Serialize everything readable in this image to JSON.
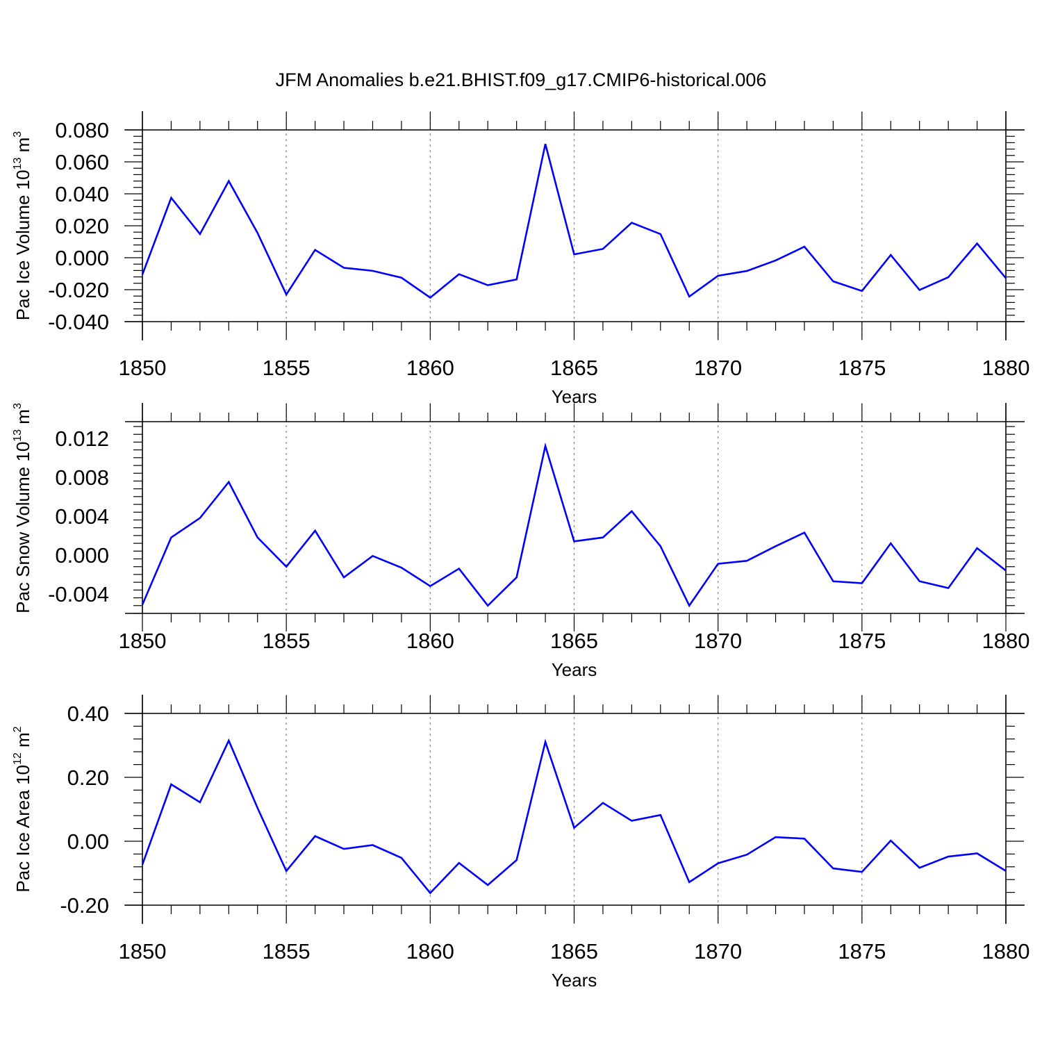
{
  "title": "JFM Anomalies b.e21.BHIST.f09_g17.CMIP6-historical.006",
  "colors": {
    "line": "#0000ff",
    "axis": "#000000",
    "grid": "#888888"
  },
  "chart_data": [
    {
      "type": "line",
      "ylabel_prefix": "Pac Ice Volume 10",
      "ylabel_exp": "13",
      "ylabel_unit": " m",
      "ylabel_unit_exp": "3",
      "xlabel": "Years",
      "xlim": [
        1850,
        1880
      ],
      "ylim": [
        -0.04,
        0.08
      ],
      "yticks": [
        -0.04,
        -0.02,
        0.0,
        0.02,
        0.04,
        0.06,
        0.08
      ],
      "ytick_labels": [
        "-0.040",
        "-0.020",
        "0.000",
        "0.020",
        "0.040",
        "0.060",
        "0.080"
      ],
      "xticks": [
        1850,
        1855,
        1860,
        1865,
        1870,
        1875,
        1880
      ],
      "xtick_labels": [
        "1850",
        "1855",
        "1860",
        "1865",
        "1870",
        "1875",
        "1880"
      ],
      "x": [
        1850,
        1851,
        1852,
        1853,
        1854,
        1855,
        1856,
        1857,
        1858,
        1859,
        1860,
        1861,
        1862,
        1863,
        1864,
        1865,
        1866,
        1867,
        1868,
        1869,
        1870,
        1871,
        1872,
        1873,
        1874,
        1875,
        1876,
        1877,
        1878,
        1879,
        1880
      ],
      "series": [
        {
          "name": "Pac Ice Volume",
          "values": [
            -0.0105,
            0.0375,
            0.0148,
            0.048,
            0.0155,
            -0.023,
            0.0049,
            -0.0063,
            -0.0082,
            -0.0125,
            -0.025,
            -0.0103,
            -0.0172,
            -0.0136,
            0.0712,
            0.0021,
            0.0055,
            0.0219,
            0.0148,
            -0.0243,
            -0.0113,
            -0.0083,
            -0.0017,
            0.0069,
            -0.0148,
            -0.0208,
            0.0017,
            -0.0202,
            -0.0122,
            0.0089,
            -0.0128
          ]
        }
      ]
    },
    {
      "type": "line",
      "ylabel_prefix": "Pac Snow Volume 10",
      "ylabel_exp": "13",
      "ylabel_unit": " m",
      "ylabel_unit_exp": "3",
      "xlabel": "Years",
      "xlim": [
        1850,
        1880
      ],
      "ylim": [
        -0.006,
        0.0137
      ],
      "yticks": [
        -0.004,
        0.0,
        0.004,
        0.008,
        0.012
      ],
      "ytick_labels": [
        "-0.004",
        "0.000",
        "0.004",
        "0.008",
        "0.012"
      ],
      "xticks": [
        1850,
        1855,
        1860,
        1865,
        1870,
        1875,
        1880
      ],
      "xtick_labels": [
        "1850",
        "1855",
        "1860",
        "1865",
        "1870",
        "1875",
        "1880"
      ],
      "x": [
        1850,
        1851,
        1852,
        1853,
        1854,
        1855,
        1856,
        1857,
        1858,
        1859,
        1860,
        1861,
        1862,
        1863,
        1864,
        1865,
        1866,
        1867,
        1868,
        1869,
        1870,
        1871,
        1872,
        1873,
        1874,
        1875,
        1876,
        1877,
        1878,
        1879,
        1880
      ],
      "series": [
        {
          "name": "Pac Snow Volume",
          "values": [
            -0.0051,
            0.0018,
            0.0038,
            0.0075,
            0.0018,
            -0.0012,
            0.0025,
            -0.0023,
            -0.0001,
            -0.0013,
            -0.0032,
            -0.0014,
            -0.0052,
            -0.0023,
            0.0112,
            0.0014,
            0.0018,
            0.0045,
            0.0009,
            -0.0052,
            -0.0009,
            -0.0006,
            0.0009,
            0.0023,
            -0.0027,
            -0.0029,
            0.0012,
            -0.0027,
            -0.0034,
            0.0007,
            -0.0016
          ]
        }
      ]
    },
    {
      "type": "line",
      "ylabel_prefix": "Pac Ice Area 10",
      "ylabel_exp": "12",
      "ylabel_unit": " m",
      "ylabel_unit_exp": "2",
      "xlabel": "Years",
      "xlim": [
        1850,
        1880
      ],
      "ylim": [
        -0.2,
        0.4
      ],
      "yticks": [
        -0.2,
        0.0,
        0.2,
        0.4
      ],
      "ytick_labels": [
        "-0.20",
        "0.00",
        "0.20",
        "0.40"
      ],
      "xticks": [
        1850,
        1855,
        1860,
        1865,
        1870,
        1875,
        1880
      ],
      "xtick_labels": [
        "1850",
        "1855",
        "1860",
        "1865",
        "1870",
        "1875",
        "1880"
      ],
      "x": [
        1850,
        1851,
        1852,
        1853,
        1854,
        1855,
        1856,
        1857,
        1858,
        1859,
        1860,
        1861,
        1862,
        1863,
        1864,
        1865,
        1866,
        1867,
        1868,
        1869,
        1870,
        1871,
        1872,
        1873,
        1874,
        1875,
        1876,
        1877,
        1878,
        1879,
        1880
      ],
      "series": [
        {
          "name": "Pac Ice Area",
          "values": [
            -0.073,
            0.178,
            0.122,
            0.315,
            0.104,
            -0.093,
            0.016,
            -0.024,
            -0.012,
            -0.052,
            -0.162,
            -0.068,
            -0.137,
            -0.059,
            0.311,
            0.042,
            0.12,
            0.064,
            0.082,
            -0.128,
            -0.069,
            -0.042,
            0.013,
            0.008,
            -0.085,
            -0.096,
            0.002,
            -0.083,
            -0.048,
            -0.038,
            -0.093
          ]
        }
      ]
    }
  ]
}
